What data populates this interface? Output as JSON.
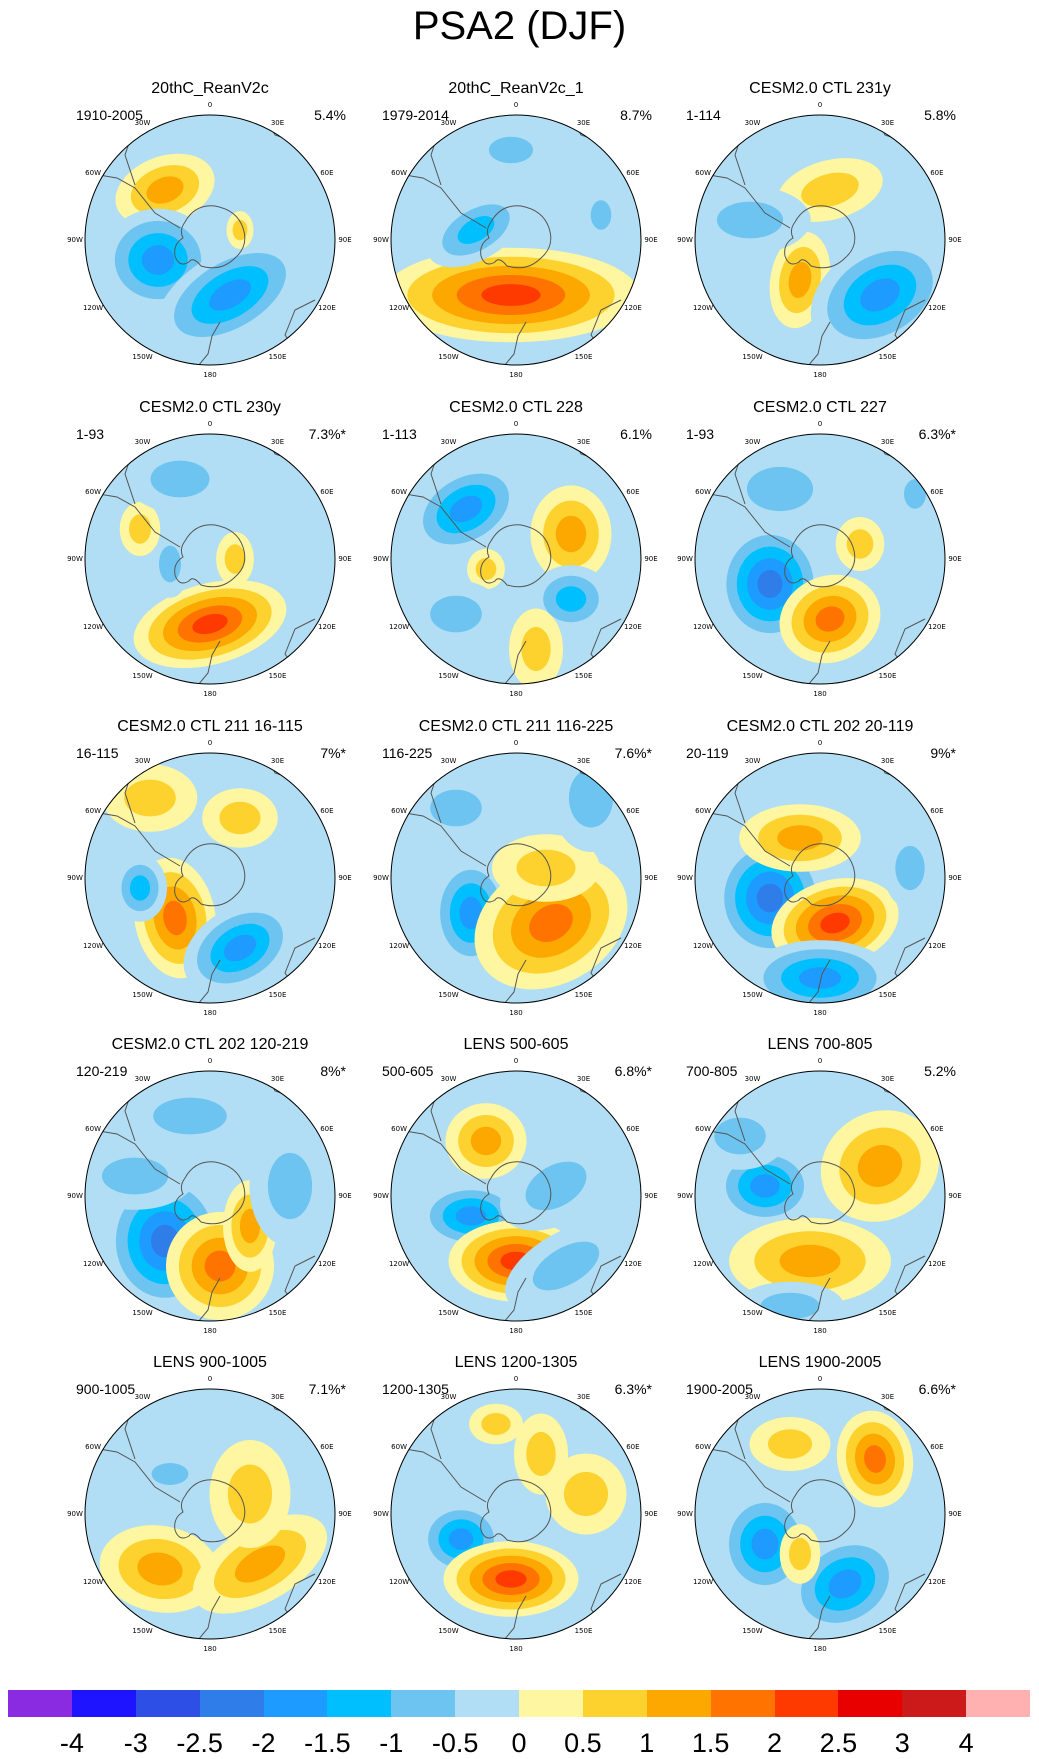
{
  "title": "PSA2 (DJF)",
  "lon_labels": [
    "0",
    "30E",
    "60E",
    "90E",
    "120E",
    "150E",
    "180",
    "150W",
    "120W",
    "90W",
    "60W",
    "30W"
  ],
  "panels": [
    {
      "title": "20thC_ReanV2c",
      "range": "1910-2005",
      "pct": "5.4%"
    },
    {
      "title": "20thC_ReanV2c_1",
      "range": "1979-2014",
      "pct": "8.7%"
    },
    {
      "title": "CESM2.0 CTL 231y",
      "range": "1-114",
      "pct": "5.8%"
    },
    {
      "title": "CESM2.0 CTL 230y",
      "range": "1-93",
      "pct": "7.3%*"
    },
    {
      "title": "CESM2.0 CTL 228",
      "range": "1-113",
      "pct": "6.1%"
    },
    {
      "title": "CESM2.0 CTL 227",
      "range": "1-93",
      "pct": "6.3%*"
    },
    {
      "title": "CESM2.0 CTL 211 16-115",
      "range": "16-115",
      "pct": "7%*"
    },
    {
      "title": "CESM2.0 CTL 211 116-225",
      "range": "116-225",
      "pct": "7.6%*"
    },
    {
      "title": "CESM2.0 CTL 202 20-119",
      "range": "20-119",
      "pct": "9%*"
    },
    {
      "title": "CESM2.0 CTL 202 120-219",
      "range": "120-219",
      "pct": "8%*"
    },
    {
      "title": "LENS 500-605",
      "range": "500-605",
      "pct": "6.8%*"
    },
    {
      "title": "LENS 700-805",
      "range": "700-805",
      "pct": "5.2%"
    },
    {
      "title": "LENS 900-1005",
      "range": "900-1005",
      "pct": "7.1%*"
    },
    {
      "title": "LENS 1200-1305",
      "range": "1200-1305",
      "pct": "6.3%*"
    },
    {
      "title": "LENS 1900-2005",
      "range": "1900-2005",
      "pct": "6.6%*"
    }
  ],
  "colorbar": {
    "colors": [
      "#8a2be2",
      "#1f14ff",
      "#2d4fe6",
      "#2f7de8",
      "#1e9bff",
      "#00bfff",
      "#6ec4f0",
      "#b1def4",
      "#fef6a0",
      "#fdd12e",
      "#fca800",
      "#ff7400",
      "#ff3a00",
      "#e80000",
      "#cc1a1a",
      "#ffb0b0"
    ],
    "labels": [
      "-4",
      "-3",
      "-2.5",
      "-2",
      "-1.5",
      "-1",
      "-0.5",
      "0",
      "0.5",
      "1",
      "1.5",
      "2",
      "2.5",
      "3",
      "4"
    ]
  }
}
